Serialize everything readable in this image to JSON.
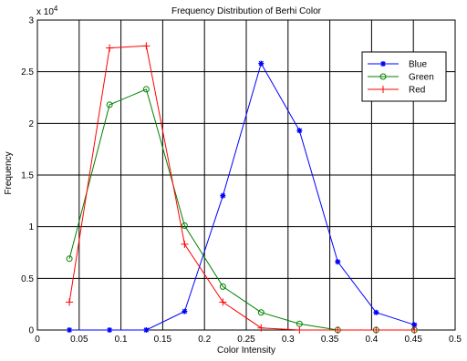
{
  "chart_data": {
    "type": "line",
    "title": "Frequency Distribution of Berhi Color",
    "xlabel": "Color Intensity",
    "ylabel": "Frequency",
    "y_multiplier": "x 10^4",
    "xlim": [
      0,
      0.5
    ],
    "ylim": [
      0,
      3
    ],
    "y_scale_exponent": 4,
    "x_ticks": [
      "0",
      "0.05",
      "0.1",
      "0.15",
      "0.2",
      "0.25",
      "0.3",
      "0.35",
      "0.4",
      "0.45",
      "0.5"
    ],
    "y_ticks": [
      "0",
      "0.5",
      "1",
      "1.5",
      "2",
      "2.5",
      "3"
    ],
    "grid": true,
    "legend_position": "top-right",
    "series": [
      {
        "name": "Blue",
        "color": "#0000ff",
        "marker": "star",
        "x": [
          0.0383,
          0.0864,
          0.1303,
          0.1762,
          0.222,
          0.2678,
          0.3137,
          0.3595,
          0.4054,
          0.4512
        ],
        "y": [
          0.0,
          0.0,
          0.0,
          0.18,
          1.3,
          2.58,
          1.93,
          0.66,
          0.17,
          0.05
        ]
      },
      {
        "name": "Green",
        "color": "#008000",
        "marker": "circle",
        "x": [
          0.0383,
          0.0864,
          0.1303,
          0.1762,
          0.222,
          0.2678,
          0.3137,
          0.3595,
          0.4054,
          0.4512
        ],
        "y": [
          0.69,
          2.18,
          2.33,
          1.01,
          0.42,
          0.17,
          0.06,
          0.0,
          0.0,
          0.0
        ]
      },
      {
        "name": "Red",
        "color": "#ff0000",
        "marker": "plus",
        "x": [
          0.0383,
          0.0864,
          0.1303,
          0.1762,
          0.222,
          0.2678,
          0.3137,
          0.3595,
          0.4054,
          0.4512
        ],
        "y": [
          0.27,
          2.73,
          2.75,
          0.83,
          0.27,
          0.02,
          0.0,
          0.0,
          0.0,
          0.0
        ]
      }
    ]
  }
}
